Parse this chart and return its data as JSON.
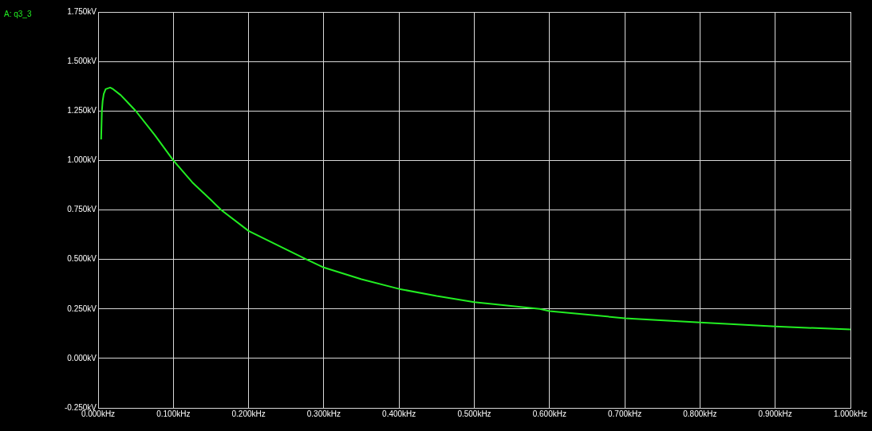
{
  "chart_data": {
    "type": "line",
    "legend": "top left",
    "grid": true,
    "marker": "none",
    "line_style": "solid",
    "x": [
      0.004,
      0.005,
      0.006,
      0.0075,
      0.01,
      0.016,
      0.02,
      0.03,
      0.04,
      0.05,
      0.075,
      0.1,
      0.125,
      0.15,
      0.1635,
      0.2,
      0.25,
      0.277,
      0.3,
      0.35,
      0.4,
      0.45,
      0.5,
      0.587,
      0.6,
      0.7,
      0.8,
      0.9,
      1.0
    ],
    "series": [
      {
        "name": "A: q3_3",
        "color": "#22ee22",
        "values": [
          1.106,
          1.25,
          1.3,
          1.336,
          1.36,
          1.368,
          1.36,
          1.33,
          1.29,
          1.25,
          1.13,
          1.0,
          0.89,
          0.8,
          0.75,
          0.644,
          0.55,
          0.5,
          0.459,
          0.4,
          0.351,
          0.315,
          0.284,
          0.25,
          0.239,
          0.203,
          0.182,
          0.161,
          0.146
        ]
      }
    ],
    "xlim": [
      0,
      1.0
    ],
    "xticks": [
      {
        "value": 0,
        "label": "0.000kHz"
      },
      {
        "value": 0.1,
        "label": "0.100kHz"
      },
      {
        "value": 0.2,
        "label": "0.200kHz"
      },
      {
        "value": 0.3,
        "label": "0.300kHz"
      },
      {
        "value": 0.4,
        "label": "0.400kHz"
      },
      {
        "value": 0.5,
        "label": "0.500kHz"
      },
      {
        "value": 0.6,
        "label": "0.600kHz"
      },
      {
        "value": 0.7,
        "label": "0.700kHz"
      },
      {
        "value": 0.8,
        "label": "0.800kHz"
      },
      {
        "value": 0.9,
        "label": "0.900kHz"
      },
      {
        "value": 1.0,
        "label": "1.000kHz"
      }
    ],
    "ylim": [
      -0.25,
      1.75
    ],
    "yticks": [
      {
        "value": -0.25,
        "label": "-0.250kV"
      },
      {
        "value": 0,
        "label": "0.000kV"
      },
      {
        "value": 0.25,
        "label": "0.250kV"
      },
      {
        "value": 0.5,
        "label": "0.500kV"
      },
      {
        "value": 0.75,
        "label": "0.750kV"
      },
      {
        "value": 1.0,
        "label": "1.000kV"
      },
      {
        "value": 1.25,
        "label": "1.250kV"
      },
      {
        "value": 1.5,
        "label": "1.500kV"
      },
      {
        "value": 1.75,
        "label": "1.750kV"
      }
    ]
  }
}
